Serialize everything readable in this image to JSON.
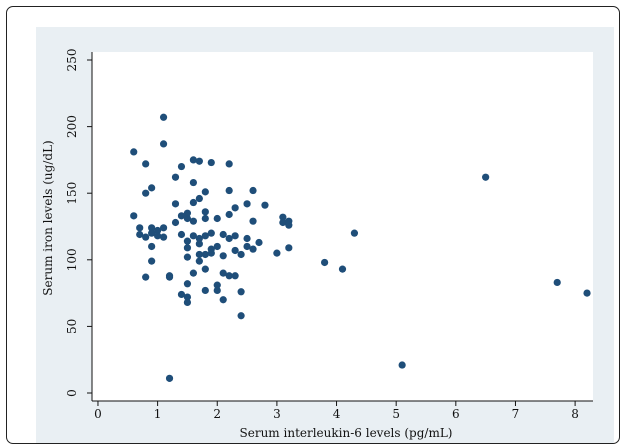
{
  "chart_data": {
    "type": "scatter",
    "title": "",
    "xlabel": "Serum interleukin-6 levels (pg/mL)",
    "ylabel": "Serum iron levels (ug/dL)",
    "xlim": [
      -0.1,
      8.3
    ],
    "ylim": [
      -6,
      256
    ],
    "xticks": [
      0,
      1,
      2,
      3,
      4,
      5,
      6,
      7,
      8
    ],
    "yticks": [
      0,
      50,
      100,
      150,
      200,
      250
    ],
    "grid": false,
    "marker_color": "#1f4e79",
    "background_color": "#e9eff3",
    "plot_area_color": "#ffffff",
    "points": [
      {
        "x": 0.6,
        "y": 181
      },
      {
        "x": 0.6,
        "y": 133
      },
      {
        "x": 0.7,
        "y": 124
      },
      {
        "x": 0.7,
        "y": 119
      },
      {
        "x": 0.8,
        "y": 172
      },
      {
        "x": 0.8,
        "y": 150
      },
      {
        "x": 0.8,
        "y": 117
      },
      {
        "x": 0.8,
        "y": 87
      },
      {
        "x": 0.9,
        "y": 154
      },
      {
        "x": 0.9,
        "y": 124
      },
      {
        "x": 0.9,
        "y": 120
      },
      {
        "x": 0.9,
        "y": 110
      },
      {
        "x": 0.9,
        "y": 99
      },
      {
        "x": 1.0,
        "y": 122
      },
      {
        "x": 1.0,
        "y": 118
      },
      {
        "x": 1.1,
        "y": 207
      },
      {
        "x": 1.1,
        "y": 187
      },
      {
        "x": 1.1,
        "y": 124
      },
      {
        "x": 1.1,
        "y": 117
      },
      {
        "x": 1.2,
        "y": 88
      },
      {
        "x": 1.2,
        "y": 87
      },
      {
        "x": 1.2,
        "y": 11
      },
      {
        "x": 1.3,
        "y": 162
      },
      {
        "x": 1.3,
        "y": 142
      },
      {
        "x": 1.3,
        "y": 128
      },
      {
        "x": 1.4,
        "y": 170
      },
      {
        "x": 1.4,
        "y": 133
      },
      {
        "x": 1.4,
        "y": 119
      },
      {
        "x": 1.4,
        "y": 74
      },
      {
        "x": 1.5,
        "y": 135
      },
      {
        "x": 1.5,
        "y": 131
      },
      {
        "x": 1.5,
        "y": 114
      },
      {
        "x": 1.5,
        "y": 109
      },
      {
        "x": 1.5,
        "y": 102
      },
      {
        "x": 1.5,
        "y": 82
      },
      {
        "x": 1.5,
        "y": 72
      },
      {
        "x": 1.5,
        "y": 68
      },
      {
        "x": 1.6,
        "y": 175
      },
      {
        "x": 1.6,
        "y": 158
      },
      {
        "x": 1.6,
        "y": 143
      },
      {
        "x": 1.6,
        "y": 129
      },
      {
        "x": 1.6,
        "y": 118
      },
      {
        "x": 1.6,
        "y": 90
      },
      {
        "x": 1.7,
        "y": 174
      },
      {
        "x": 1.7,
        "y": 146
      },
      {
        "x": 1.7,
        "y": 116
      },
      {
        "x": 1.7,
        "y": 112
      },
      {
        "x": 1.7,
        "y": 104
      },
      {
        "x": 1.7,
        "y": 99
      },
      {
        "x": 1.8,
        "y": 151
      },
      {
        "x": 1.8,
        "y": 136
      },
      {
        "x": 1.8,
        "y": 131
      },
      {
        "x": 1.8,
        "y": 118
      },
      {
        "x": 1.8,
        "y": 104
      },
      {
        "x": 1.8,
        "y": 93
      },
      {
        "x": 1.8,
        "y": 77
      },
      {
        "x": 1.9,
        "y": 173
      },
      {
        "x": 1.9,
        "y": 120
      },
      {
        "x": 1.9,
        "y": 108
      },
      {
        "x": 1.9,
        "y": 105
      },
      {
        "x": 2.0,
        "y": 131
      },
      {
        "x": 2.0,
        "y": 110
      },
      {
        "x": 2.0,
        "y": 81
      },
      {
        "x": 2.0,
        "y": 77
      },
      {
        "x": 2.1,
        "y": 119
      },
      {
        "x": 2.1,
        "y": 103
      },
      {
        "x": 2.1,
        "y": 90
      },
      {
        "x": 2.1,
        "y": 70
      },
      {
        "x": 2.2,
        "y": 172
      },
      {
        "x": 2.2,
        "y": 152
      },
      {
        "x": 2.2,
        "y": 134
      },
      {
        "x": 2.2,
        "y": 116
      },
      {
        "x": 2.2,
        "y": 88
      },
      {
        "x": 2.3,
        "y": 139
      },
      {
        "x": 2.3,
        "y": 118
      },
      {
        "x": 2.3,
        "y": 107
      },
      {
        "x": 2.3,
        "y": 88
      },
      {
        "x": 2.4,
        "y": 104
      },
      {
        "x": 2.4,
        "y": 76
      },
      {
        "x": 2.4,
        "y": 58
      },
      {
        "x": 2.5,
        "y": 142
      },
      {
        "x": 2.5,
        "y": 116
      },
      {
        "x": 2.5,
        "y": 110
      },
      {
        "x": 2.6,
        "y": 152
      },
      {
        "x": 2.6,
        "y": 129
      },
      {
        "x": 2.6,
        "y": 108
      },
      {
        "x": 2.7,
        "y": 113
      },
      {
        "x": 2.8,
        "y": 141
      },
      {
        "x": 3.0,
        "y": 105
      },
      {
        "x": 3.1,
        "y": 132
      },
      {
        "x": 3.1,
        "y": 128
      },
      {
        "x": 3.2,
        "y": 129
      },
      {
        "x": 3.2,
        "y": 126
      },
      {
        "x": 3.2,
        "y": 109
      },
      {
        "x": 3.8,
        "y": 98
      },
      {
        "x": 4.1,
        "y": 93
      },
      {
        "x": 4.3,
        "y": 120
      },
      {
        "x": 5.1,
        "y": 21
      },
      {
        "x": 6.5,
        "y": 162
      },
      {
        "x": 7.7,
        "y": 83
      },
      {
        "x": 8.2,
        "y": 75
      }
    ]
  }
}
